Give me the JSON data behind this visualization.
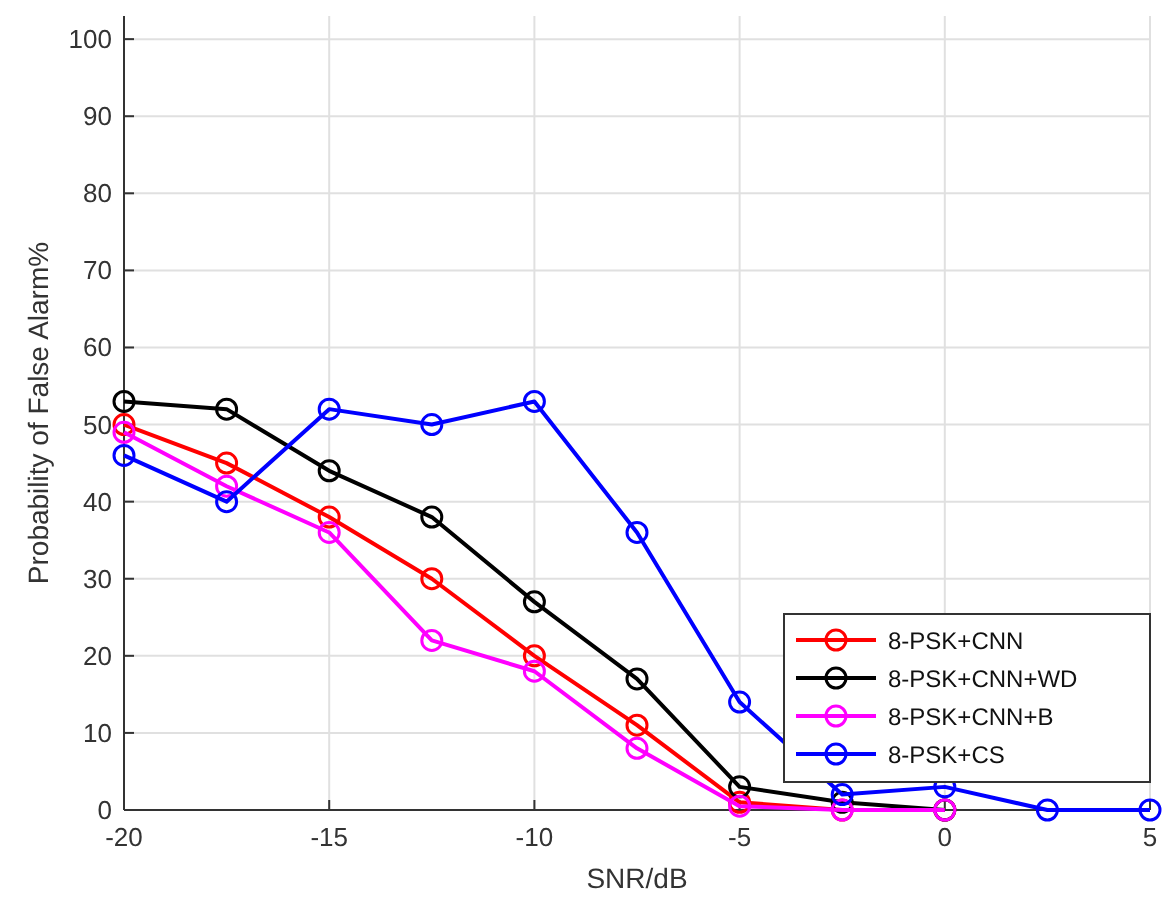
{
  "chart_data": {
    "type": "line",
    "xlabel": "SNR/dB",
    "ylabel": "Probability of False Alarm%",
    "x": [
      -20,
      -17.5,
      -15,
      -12.5,
      -10,
      -7.5,
      -5,
      -2.5,
      0,
      2.5,
      5
    ],
    "series": [
      {
        "name": "8-PSK+CNN",
        "color": "#ff0000",
        "x": [
          -20,
          -17.5,
          -15,
          -12.5,
          -10,
          -7.5,
          -5,
          -2.5,
          0
        ],
        "values": [
          50,
          45,
          38,
          30,
          20,
          11,
          1,
          0,
          0
        ]
      },
      {
        "name": "8-PSK+CNN+WD",
        "color": "#000000",
        "x": [
          -20,
          -17.5,
          -15,
          -12.5,
          -10,
          -7.5,
          -5,
          -2.5,
          0
        ],
        "values": [
          53,
          52,
          44,
          38,
          27,
          17,
          3,
          1,
          0
        ]
      },
      {
        "name": "8-PSK+CNN+B",
        "color": "#ff00ff",
        "x": [
          -20,
          -17.5,
          -15,
          -12.5,
          -10,
          -7.5,
          -5,
          -2.5,
          0
        ],
        "values": [
          49,
          42,
          36,
          22,
          18,
          8,
          0.5,
          0,
          0
        ]
      },
      {
        "name": "8-PSK+CS",
        "color": "#0000ff",
        "values": [
          46,
          40,
          52,
          50,
          53,
          36,
          14,
          2,
          3,
          0,
          0
        ]
      }
    ],
    "xlim": [
      -20,
      5
    ],
    "xticks": [
      -20,
      -15,
      -10,
      -5,
      0,
      5
    ],
    "ylim": [
      0,
      103
    ],
    "yticks": [
      0,
      10,
      20,
      30,
      40,
      50,
      60,
      70,
      80,
      90,
      100
    ],
    "grid": true,
    "legend": "bottom right",
    "marker": "circle",
    "line_style": "solid"
  }
}
